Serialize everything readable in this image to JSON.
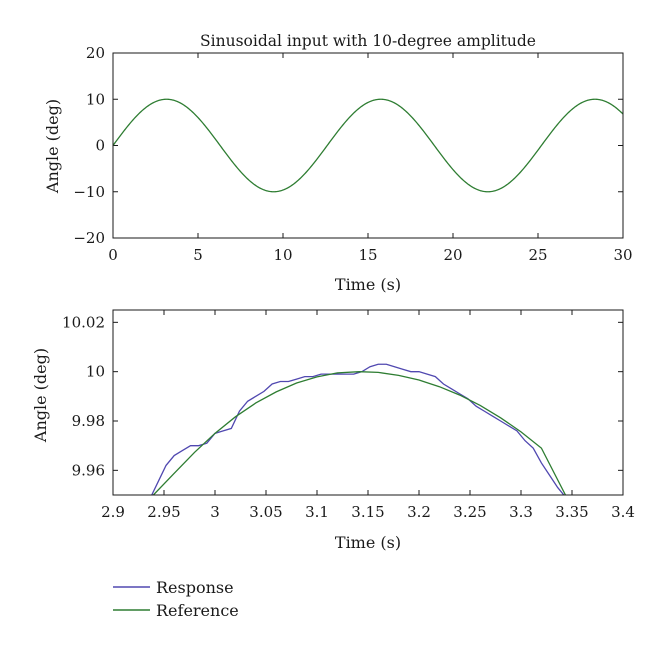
{
  "chart_data": [
    {
      "type": "line",
      "title": "Sinusoidal input with 10-degree amplitude",
      "xlabel": "Time (s)",
      "ylabel": "Angle (deg)",
      "xlim": [
        0,
        30
      ],
      "ylim": [
        -20,
        20
      ],
      "xticks": [
        0,
        5,
        10,
        15,
        20,
        25,
        30
      ],
      "xtick_labels": [
        "0",
        "5",
        "10",
        "15",
        "20",
        "25",
        "30"
      ],
      "yticks": [
        -20,
        -10,
        0,
        10,
        20
      ],
      "ytick_labels": [
        "−20",
        "−10",
        "0",
        "10",
        "20"
      ],
      "grid": false,
      "series": [
        {
          "name": "Reference",
          "color": "#2e7d32",
          "x": [
            0,
            1.05,
            2.1,
            3.15,
            4.2,
            5.25,
            6.3,
            7.35,
            8.4,
            9.45,
            10.5,
            11.55,
            12.6,
            13.65,
            14.7,
            15.75,
            16.8,
            17.85,
            18.9,
            19.95,
            21.0,
            22.05,
            23.1,
            24.15,
            25.2,
            26.25,
            27.3,
            28.35,
            29.4,
            30.0
          ],
          "y": [
            0,
            5.0,
            8.66,
            10.0,
            8.66,
            5.0,
            0,
            -5.0,
            -8.66,
            -10.0,
            -8.66,
            -5.0,
            0,
            5.0,
            8.66,
            10.0,
            8.66,
            5.0,
            0,
            -5.0,
            -8.66,
            -10.0,
            -8.66,
            -5.0,
            0,
            5.0,
            8.66,
            10.0,
            8.66,
            5.8
          ]
        }
      ]
    },
    {
      "type": "line",
      "title": "",
      "xlabel": "Time (s)",
      "ylabel": "Angle (deg)",
      "xlim": [
        2.9,
        3.4
      ],
      "ylim": [
        9.95,
        10.025
      ],
      "xticks": [
        2.9,
        2.95,
        3.0,
        3.05,
        3.1,
        3.15,
        3.2,
        3.25,
        3.3,
        3.35,
        3.4
      ],
      "xtick_labels": [
        "2.9",
        "2.95",
        "3",
        "3.05",
        "3.1",
        "3.15",
        "3.2",
        "3.25",
        "3.3",
        "3.35",
        "3.4"
      ],
      "yticks": [
        9.96,
        9.98,
        10.0,
        10.02
      ],
      "ytick_labels": [
        "9.96",
        "9.98",
        "10",
        "10.02"
      ],
      "grid": false,
      "series": [
        {
          "name": "Response",
          "color": "#5048b0",
          "x": [
            2.938,
            2.945,
            2.952,
            2.96,
            2.968,
            2.976,
            2.984,
            2.992,
            3.0,
            3.008,
            3.016,
            3.024,
            3.032,
            3.04,
            3.048,
            3.056,
            3.064,
            3.072,
            3.08,
            3.088,
            3.096,
            3.104,
            3.112,
            3.12,
            3.128,
            3.136,
            3.144,
            3.152,
            3.16,
            3.168,
            3.176,
            3.184,
            3.192,
            3.2,
            3.208,
            3.216,
            3.224,
            3.232,
            3.24,
            3.248,
            3.256,
            3.264,
            3.272,
            3.28,
            3.288,
            3.296,
            3.304,
            3.312,
            3.32,
            3.328,
            3.336,
            3.342
          ],
          "y": [
            9.95,
            9.956,
            9.962,
            9.966,
            9.968,
            9.97,
            9.97,
            9.971,
            9.975,
            9.976,
            9.977,
            9.984,
            9.988,
            9.99,
            9.992,
            9.995,
            9.996,
            9.996,
            9.997,
            9.998,
            9.998,
            9.999,
            9.999,
            9.999,
            9.999,
            9.999,
            10.0,
            10.002,
            10.003,
            10.003,
            10.002,
            10.001,
            10.0,
            10.0,
            9.999,
            9.998,
            9.995,
            9.993,
            9.991,
            9.989,
            9.986,
            9.984,
            9.982,
            9.98,
            9.978,
            9.976,
            9.972,
            9.969,
            9.963,
            9.958,
            9.953,
            9.95
          ]
        },
        {
          "name": "Reference",
          "color": "#2e7d32",
          "x": [
            2.9396,
            2.96,
            2.98,
            3.0,
            3.02,
            3.04,
            3.06,
            3.08,
            3.1,
            3.12,
            3.1416,
            3.16,
            3.18,
            3.2,
            3.22,
            3.24,
            3.26,
            3.28,
            3.3,
            3.32,
            3.3436
          ],
          "y": [
            9.95,
            9.9588,
            9.9673,
            9.975,
            9.9817,
            9.9873,
            9.9918,
            9.9954,
            9.9979,
            9.9995,
            10.0,
            9.9997,
            9.9985,
            9.9966,
            9.9939,
            9.9905,
            9.9863,
            9.9813,
            9.9756,
            9.969,
            9.95
          ]
        }
      ]
    }
  ],
  "legend": {
    "entries": [
      {
        "label": "Response",
        "color": "#5048b0"
      },
      {
        "label": "Reference",
        "color": "#2e7d32"
      }
    ]
  }
}
